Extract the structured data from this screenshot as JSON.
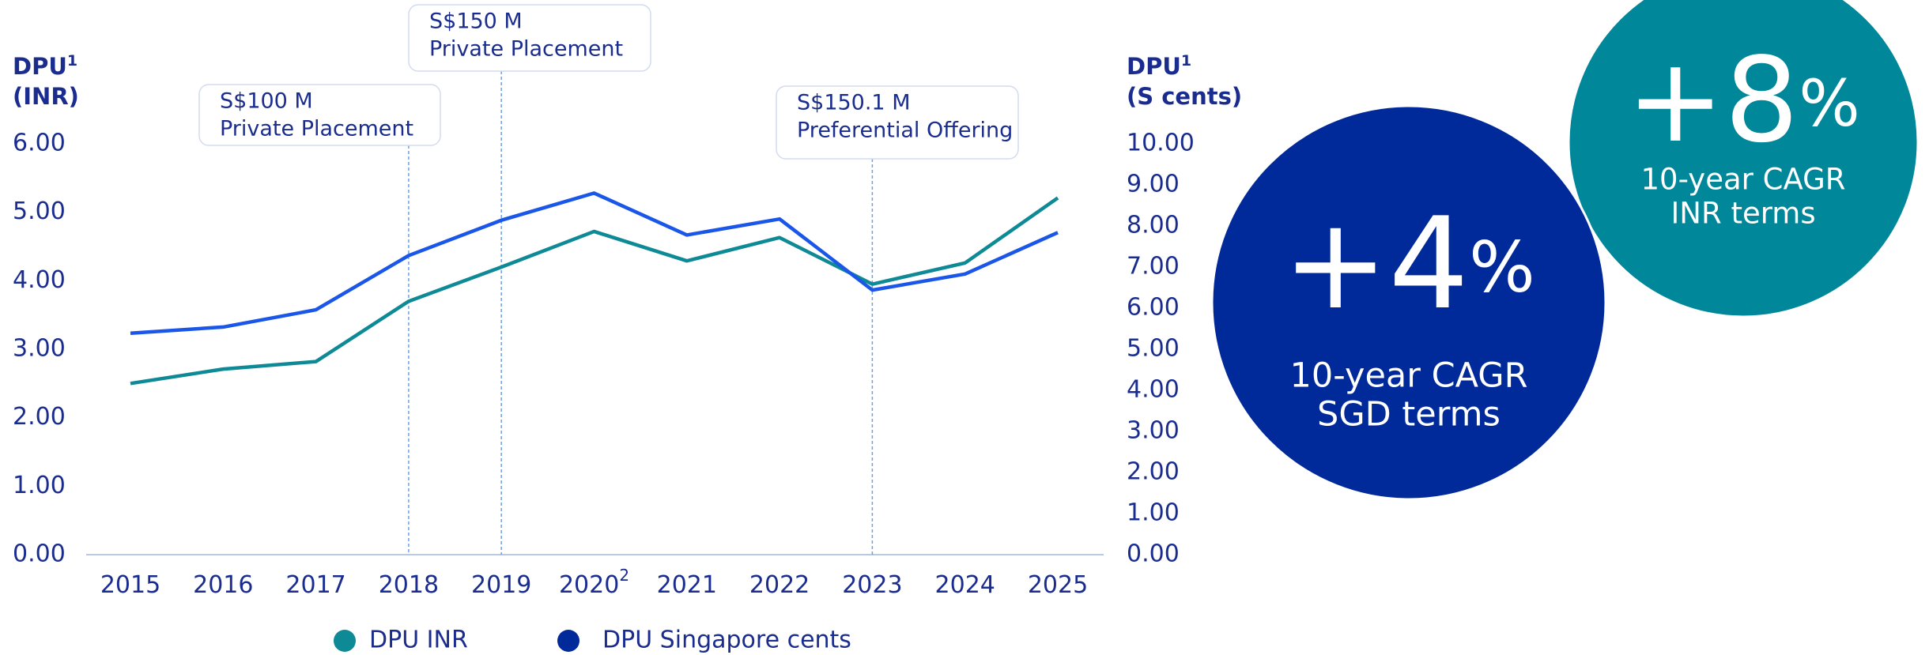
{
  "chart_data": {
    "type": "line",
    "categories": [
      "2015",
      "2016",
      "2017",
      "2018",
      "2019",
      "2020",
      "2021",
      "2022",
      "2023",
      "2024",
      "2025"
    ],
    "x_label_notes": [
      null,
      null,
      null,
      null,
      null,
      "2",
      null,
      null,
      null,
      null,
      null
    ],
    "y_title": {
      "main": "DPU",
      "note": "1",
      "unit": "(INR)"
    },
    "y2_title": {
      "main": "DPU",
      "note": "1",
      "unit": "(S cents)"
    },
    "ylim": [
      0,
      6
    ],
    "yticks": [
      {
        "value": 0,
        "label": "0.00"
      },
      {
        "value": 1,
        "label": "1.00"
      },
      {
        "value": 2,
        "label": "2.00"
      },
      {
        "value": 3,
        "label": "3.00"
      },
      {
        "value": 4,
        "label": "4.00"
      },
      {
        "value": 5,
        "label": "5.00"
      },
      {
        "value": 6,
        "label": "6.00"
      }
    ],
    "y2lim": [
      0,
      10
    ],
    "y2ticks": [
      {
        "value": 0,
        "label": "0.00"
      },
      {
        "value": 1,
        "label": "1.00"
      },
      {
        "value": 2,
        "label": "2.00"
      },
      {
        "value": 3,
        "label": "3.00"
      },
      {
        "value": 4,
        "label": "4.00"
      },
      {
        "value": 5,
        "label": "5.00"
      },
      {
        "value": 6,
        "label": "6.00"
      },
      {
        "value": 7,
        "label": "7.00"
      },
      {
        "value": 8,
        "label": "8.00"
      },
      {
        "value": 9,
        "label": "9.00"
      },
      {
        "value": 10,
        "label": "10.00"
      }
    ],
    "series": [
      {
        "name": "DPU INR",
        "color": "#0e8a96",
        "axis": "y",
        "values": [
          2.5,
          2.71,
          2.82,
          3.7,
          4.2,
          4.72,
          4.29,
          4.63,
          3.95,
          4.26,
          5.21
        ]
      },
      {
        "name": "DPU Singapore cents",
        "color": "#1a56e8",
        "legend_color": "#00299a",
        "axis": "y2",
        "values": [
          5.39,
          5.54,
          5.96,
          7.28,
          8.14,
          8.8,
          7.78,
          8.17,
          6.44,
          6.83,
          7.84
        ]
      }
    ],
    "annotations": [
      {
        "x": "2018",
        "lines": [
          "S$100 M",
          "Private Placement"
        ]
      },
      {
        "x": "2019",
        "lines": [
          "S$150 M",
          "Private Placement"
        ]
      },
      {
        "x": "2023",
        "lines": [
          "S$150.1 M",
          "Preferential Offering"
        ]
      }
    ]
  },
  "highlights": [
    {
      "number": "+8",
      "suffix": "%",
      "lines": [
        "10-year CAGR",
        "INR terms"
      ],
      "color": "#00879a"
    },
    {
      "number": "+4",
      "suffix": "%",
      "lines": [
        "10-year CAGR",
        "SGD terms"
      ],
      "color": "#00299a"
    }
  ]
}
